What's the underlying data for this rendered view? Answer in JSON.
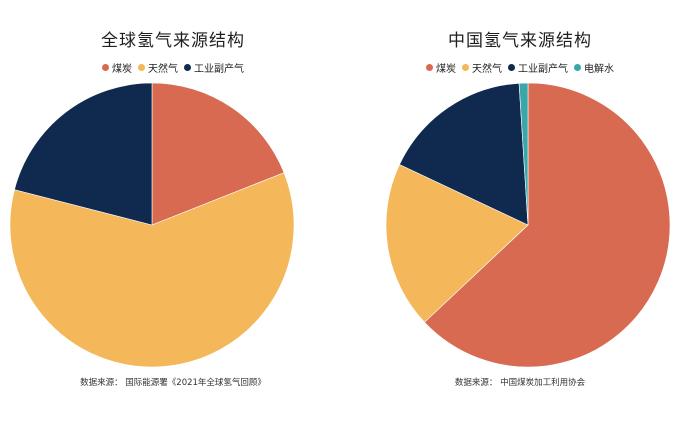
{
  "colors": {
    "coal": "#d76a50",
    "gas": "#f4b75a",
    "byproduct": "#0f2a4e",
    "electrolysis": "#3aa6a8"
  },
  "chart_data": [
    {
      "type": "pie",
      "title": "全球氢气来源结构",
      "categories": [
        "煤炭",
        "天然气",
        "工业副产气"
      ],
      "values": [
        19,
        60,
        21
      ],
      "color_keys": [
        "coal",
        "gas",
        "byproduct"
      ],
      "start_angle_deg": 0,
      "direction": "clockwise",
      "legend_position": "top",
      "source": "数据来源： 国际能源署《2021年全球氢气回顾》"
    },
    {
      "type": "pie",
      "title": "中国氢气来源结构",
      "categories": [
        "煤炭",
        "天然气",
        "工业副产气",
        "电解水"
      ],
      "values": [
        63,
        19,
        17,
        1
      ],
      "color_keys": [
        "coal",
        "gas",
        "byproduct",
        "electrolysis"
      ],
      "start_angle_deg": 0,
      "direction": "clockwise",
      "legend_position": "top",
      "source": "数据来源： 中国煤炭加工利用协会"
    }
  ]
}
